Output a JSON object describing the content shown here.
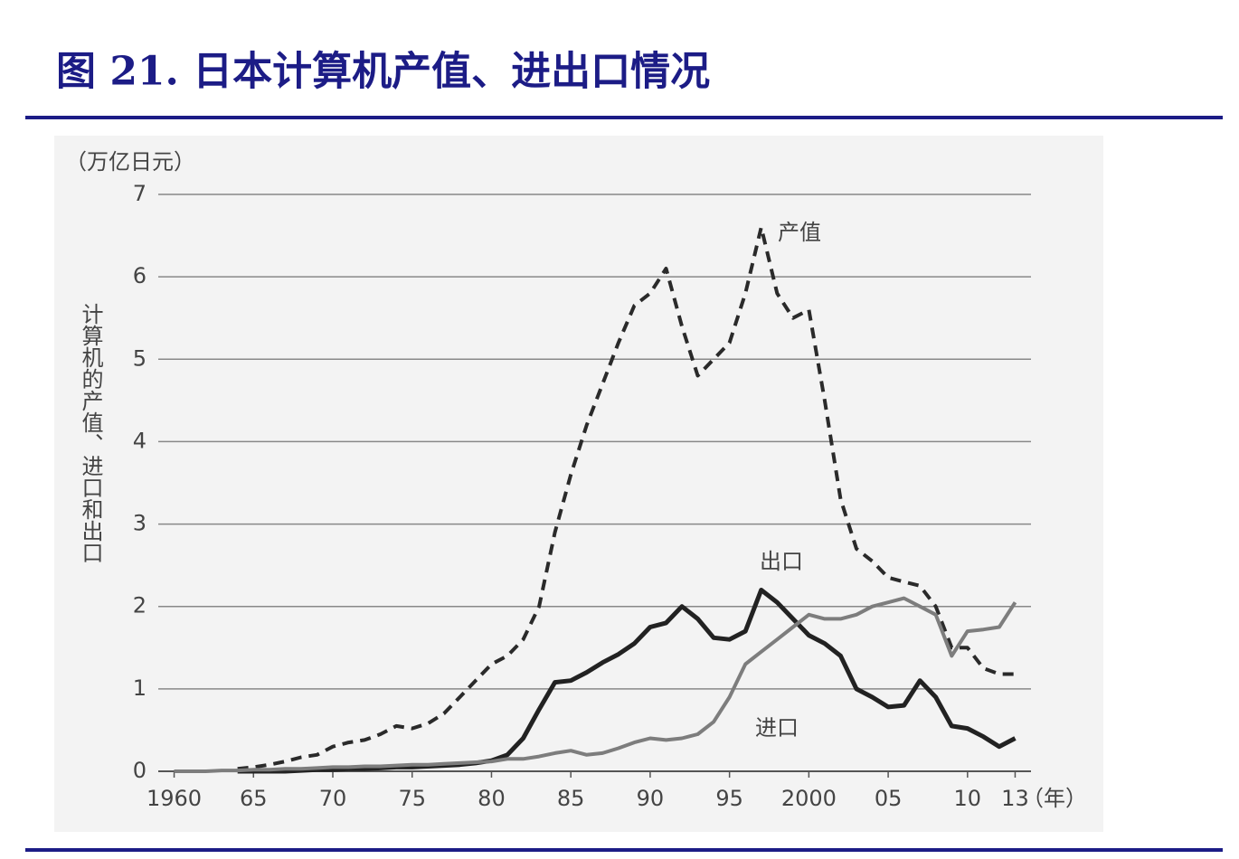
{
  "chart_data": {
    "type": "line",
    "title": "图 21. 日本计算机产值、进出口情况",
    "y_unit": "（万亿日元）",
    "y_label": "计算机的产值、进口和出口",
    "x_label": "（年）",
    "x": [
      1960,
      1961,
      1962,
      1963,
      1964,
      1965,
      1966,
      1967,
      1968,
      1969,
      1970,
      1971,
      1972,
      1973,
      1974,
      1975,
      1976,
      1977,
      1978,
      1979,
      1980,
      1981,
      1982,
      1983,
      1984,
      1985,
      1986,
      1987,
      1988,
      1989,
      1990,
      1991,
      1992,
      1993,
      1994,
      1995,
      1996,
      1997,
      1998,
      1999,
      2000,
      2001,
      2002,
      2003,
      2004,
      2005,
      2006,
      2007,
      2008,
      2009,
      2010,
      2011,
      2012,
      2013
    ],
    "series": [
      {
        "name": "产值",
        "color": "#2a2a2a",
        "values": [
          null,
          null,
          null,
          null,
          0.03,
          0.05,
          0.08,
          0.12,
          0.17,
          0.2,
          0.3,
          0.35,
          0.38,
          0.45,
          0.55,
          0.52,
          0.58,
          0.7,
          0.9,
          1.1,
          1.3,
          1.4,
          1.6,
          2.0,
          2.9,
          3.6,
          4.2,
          4.7,
          5.2,
          5.65,
          5.8,
          6.1,
          5.4,
          4.8,
          5.0,
          5.2,
          5.8,
          6.6,
          5.8,
          5.5,
          5.6,
          4.5,
          3.3,
          2.7,
          2.55,
          2.35,
          2.3,
          2.25,
          2.0,
          1.5,
          1.5,
          1.25,
          1.18,
          1.18
        ]
      },
      {
        "name": "出口",
        "color": "#222222",
        "values": [
          null,
          null,
          null,
          null,
          0,
          0,
          0,
          0,
          0.01,
          0.02,
          0.02,
          0.03,
          0.03,
          0.04,
          0.05,
          0.05,
          0.06,
          0.07,
          0.08,
          0.1,
          0.13,
          0.2,
          0.4,
          0.75,
          1.08,
          1.1,
          1.2,
          1.32,
          1.42,
          1.55,
          1.75,
          1.8,
          2.0,
          1.85,
          1.62,
          1.6,
          1.7,
          2.2,
          2.05,
          1.85,
          1.65,
          1.55,
          1.4,
          1.0,
          0.9,
          0.78,
          0.8,
          1.1,
          0.9,
          0.55,
          0.52,
          0.42,
          0.3,
          0.4
        ]
      },
      {
        "name": "进口",
        "color": "#7d7d7d",
        "values": [
          0,
          0,
          0,
          0.01,
          0.01,
          0.02,
          0.02,
          0.03,
          0.03,
          0.04,
          0.05,
          0.05,
          0.06,
          0.06,
          0.07,
          0.08,
          0.08,
          0.09,
          0.1,
          0.11,
          0.12,
          0.15,
          0.15,
          0.18,
          0.22,
          0.25,
          0.2,
          0.22,
          0.28,
          0.35,
          0.4,
          0.38,
          0.4,
          0.45,
          0.6,
          0.9,
          1.3,
          1.45,
          1.6,
          1.75,
          1.9,
          1.85,
          1.85,
          1.9,
          2.0,
          2.05,
          2.1,
          2.0,
          1.9,
          1.4,
          1.7,
          1.72,
          1.75,
          2.05
        ]
      }
    ],
    "xlim": [
      1959,
      2014
    ],
    "xticks": [
      1960,
      {
        "value": 1965,
        "label": "65"
      },
      {
        "value": 1970,
        "label": "70"
      },
      {
        "value": 1975,
        "label": "75"
      },
      {
        "value": 1980,
        "label": "80"
      },
      {
        "value": 1985,
        "label": "85"
      },
      {
        "value": 1990,
        "label": "90"
      },
      {
        "value": 1995,
        "label": "95"
      },
      2000,
      {
        "value": 2005,
        "label": "05"
      },
      {
        "value": 2010,
        "label": "10"
      },
      {
        "value": 2013,
        "label": "13"
      }
    ],
    "ylim": [
      0,
      7
    ],
    "yticks": [
      0,
      1,
      2,
      3,
      4,
      5,
      6,
      7
    ],
    "grid": true
  }
}
